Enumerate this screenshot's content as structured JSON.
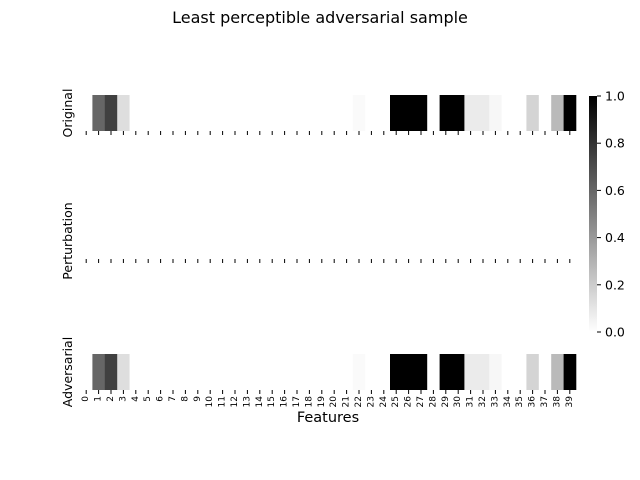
{
  "chart_data": {
    "type": "heatmap",
    "title": "Least perceptible adversarial sample",
    "xlabel": "Features",
    "features": [
      "0",
      "1",
      "2",
      "3",
      "4",
      "5",
      "6",
      "7",
      "8",
      "9",
      "10",
      "11",
      "12",
      "13",
      "14",
      "15",
      "16",
      "17",
      "18",
      "19",
      "20",
      "21",
      "22",
      "23",
      "24",
      "25",
      "26",
      "27",
      "28",
      "29",
      "30",
      "31",
      "32",
      "33",
      "34",
      "35",
      "36",
      "37",
      "38",
      "39"
    ],
    "rows": [
      {
        "label": "Original",
        "values": [
          0,
          0.6,
          0.75,
          0.13,
          0,
          0,
          0,
          0,
          0,
          0,
          0,
          0,
          0,
          0,
          0,
          0,
          0,
          0,
          0,
          0,
          0,
          0,
          0.02,
          0,
          0,
          1,
          1,
          1,
          0,
          1,
          1,
          0.08,
          0.08,
          0.03,
          0,
          0,
          0.17,
          0,
          0.27,
          1
        ]
      },
      {
        "label": "Perturbation",
        "values": [
          0,
          0,
          0,
          0,
          0,
          0,
          0,
          0,
          0,
          0,
          0,
          0,
          0,
          0,
          0,
          0,
          0,
          0,
          0,
          0,
          0,
          0,
          0,
          0,
          0,
          0,
          0,
          0,
          0,
          0,
          0,
          0,
          0,
          0,
          0,
          0,
          0,
          0,
          0,
          0
        ]
      },
      {
        "label": "Adversarial",
        "values": [
          0,
          0.6,
          0.75,
          0.13,
          0,
          0,
          0,
          0,
          0,
          0,
          0,
          0,
          0,
          0,
          0,
          0,
          0,
          0,
          0,
          0,
          0,
          0,
          0.02,
          0,
          0,
          1,
          1,
          1,
          0,
          1,
          1,
          0.08,
          0.08,
          0.03,
          0,
          0,
          0.17,
          0,
          0.27,
          1
        ]
      }
    ],
    "colorbar": {
      "min": 0,
      "max": 1,
      "ticks": [
        "0.0",
        "0.2",
        "0.4",
        "0.6",
        "0.8",
        "1.0"
      ],
      "colormap": "white-to-black"
    },
    "grid": false
  }
}
